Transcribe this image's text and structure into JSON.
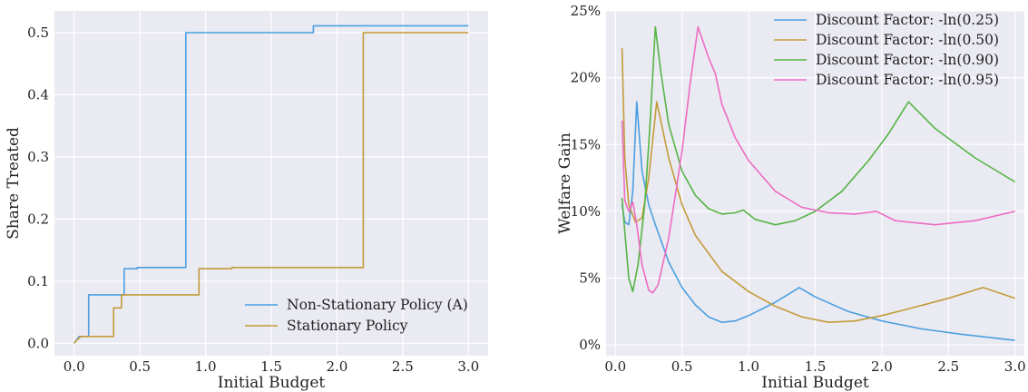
{
  "colors": {
    "plot_bg": "#eaeaf2",
    "grid": "#ffffff",
    "blue": "#4a9fe0",
    "gold": "#c39b3a",
    "green": "#55b545",
    "pink": "#ee6cc2"
  },
  "chart_data": [
    {
      "type": "line",
      "step": true,
      "xlabel": "Initial Budget",
      "ylabel": "Share Treated",
      "xlim": [
        -0.15,
        3.15
      ],
      "ylim": [
        -0.02,
        0.535
      ],
      "xticks": [
        "0.0",
        "0.5",
        "1.0",
        "1.5",
        "2.0",
        "2.5",
        "3.0"
      ],
      "xtick_values": [
        0,
        0.5,
        1.0,
        1.5,
        2.0,
        2.5,
        3.0
      ],
      "yticks": [
        "0.0",
        "0.1",
        "0.2",
        "0.3",
        "0.4",
        "0.5"
      ],
      "ytick_values": [
        0,
        0.1,
        0.2,
        0.3,
        0.4,
        0.5
      ],
      "grid": true,
      "legend_position": "lower-right",
      "series": [
        {
          "name": "Non-Stationary Policy (A)",
          "color_key": "blue",
          "points": [
            [
              0.0,
              0.0
            ],
            [
              0.02,
              0.006
            ],
            [
              0.04,
              0.011
            ],
            [
              0.11,
              0.011
            ],
            [
              0.11,
              0.078
            ],
            [
              0.38,
              0.078
            ],
            [
              0.38,
              0.12
            ],
            [
              0.48,
              0.12
            ],
            [
              0.48,
              0.122
            ],
            [
              0.85,
              0.122
            ],
            [
              0.85,
              0.5
            ],
            [
              1.82,
              0.5
            ],
            [
              1.82,
              0.511
            ],
            [
              3.0,
              0.511
            ]
          ]
        },
        {
          "name": "Stationary Policy",
          "color_key": "gold",
          "points": [
            [
              0.0,
              0.0
            ],
            [
              0.02,
              0.005
            ],
            [
              0.05,
              0.011
            ],
            [
              0.3,
              0.011
            ],
            [
              0.3,
              0.057
            ],
            [
              0.36,
              0.057
            ],
            [
              0.36,
              0.078
            ],
            [
              0.95,
              0.078
            ],
            [
              0.95,
              0.12
            ],
            [
              1.2,
              0.12
            ],
            [
              1.2,
              0.122
            ],
            [
              2.2,
              0.122
            ],
            [
              2.2,
              0.5
            ],
            [
              3.0,
              0.5
            ]
          ]
        }
      ]
    },
    {
      "type": "line",
      "xlabel": "Initial Budget",
      "ylabel": "Welfare Gain",
      "xlim": [
        -0.07,
        3.07
      ],
      "ylim": [
        -0.8,
        25.0
      ],
      "xticks": [
        "0.0",
        "0.5",
        "1.0",
        "1.5",
        "2.0",
        "2.5",
        "3.0"
      ],
      "xtick_values": [
        0,
        0.5,
        1.0,
        1.5,
        2.0,
        2.5,
        3.0
      ],
      "yticks": [
        "0%",
        "5%",
        "10%",
        "15%",
        "20%",
        "25%"
      ],
      "ytick_values": [
        0,
        5,
        10,
        15,
        20,
        25
      ],
      "grid": true,
      "legend_position": "top-right",
      "series": [
        {
          "name": "Discount Factor: -ln(0.25)",
          "color_key": "blue",
          "points": [
            [
              0.05,
              10.5
            ],
            [
              0.07,
              9.2
            ],
            [
              0.1,
              9.0
            ],
            [
              0.13,
              11.5
            ],
            [
              0.16,
              18.2
            ],
            [
              0.2,
              13.0
            ],
            [
              0.25,
              10.5
            ],
            [
              0.3,
              9.0
            ],
            [
              0.4,
              6.2
            ],
            [
              0.5,
              4.3
            ],
            [
              0.6,
              3.0
            ],
            [
              0.7,
              2.1
            ],
            [
              0.8,
              1.7
            ],
            [
              0.9,
              1.8
            ],
            [
              1.0,
              2.2
            ],
            [
              1.2,
              3.2
            ],
            [
              1.38,
              4.3
            ],
            [
              1.5,
              3.6
            ],
            [
              1.75,
              2.5
            ],
            [
              2.0,
              1.8
            ],
            [
              2.3,
              1.2
            ],
            [
              2.6,
              0.8
            ],
            [
              3.0,
              0.35
            ]
          ]
        },
        {
          "name": "Discount Factor: -ln(0.50)",
          "color_key": "gold",
          "points": [
            [
              0.05,
              22.2
            ],
            [
              0.07,
              14.0
            ],
            [
              0.1,
              10.5
            ],
            [
              0.15,
              9.2
            ],
            [
              0.2,
              9.5
            ],
            [
              0.25,
              12.5
            ],
            [
              0.31,
              18.2
            ],
            [
              0.4,
              14.0
            ],
            [
              0.5,
              10.5
            ],
            [
              0.6,
              8.2
            ],
            [
              0.8,
              5.5
            ],
            [
              1.0,
              4.0
            ],
            [
              1.2,
              2.9
            ],
            [
              1.4,
              2.1
            ],
            [
              1.6,
              1.7
            ],
            [
              1.8,
              1.8
            ],
            [
              2.0,
              2.2
            ],
            [
              2.2,
              2.7
            ],
            [
              2.5,
              3.5
            ],
            [
              2.76,
              4.3
            ],
            [
              2.85,
              4.0
            ],
            [
              3.0,
              3.5
            ]
          ]
        },
        {
          "name": "Discount Factor: -ln(0.90)",
          "color_key": "green",
          "points": [
            [
              0.05,
              11.0
            ],
            [
              0.07,
              8.5
            ],
            [
              0.1,
              5.0
            ],
            [
              0.13,
              4.0
            ],
            [
              0.17,
              6.0
            ],
            [
              0.22,
              10.5
            ],
            [
              0.26,
              16.5
            ],
            [
              0.3,
              23.8
            ],
            [
              0.34,
              20.5
            ],
            [
              0.4,
              16.5
            ],
            [
              0.5,
              13.0
            ],
            [
              0.6,
              11.2
            ],
            [
              0.7,
              10.2
            ],
            [
              0.8,
              9.8
            ],
            [
              0.9,
              9.9
            ],
            [
              0.96,
              10.1
            ],
            [
              1.05,
              9.4
            ],
            [
              1.2,
              9.0
            ],
            [
              1.35,
              9.3
            ],
            [
              1.5,
              10.0
            ],
            [
              1.7,
              11.5
            ],
            [
              1.9,
              13.8
            ],
            [
              2.05,
              15.8
            ],
            [
              2.2,
              18.2
            ],
            [
              2.4,
              16.2
            ],
            [
              2.7,
              14.0
            ],
            [
              3.0,
              12.2
            ]
          ]
        },
        {
          "name": "Discount Factor: -ln(0.95)",
          "color_key": "pink",
          "points": [
            [
              0.05,
              16.8
            ],
            [
              0.07,
              10.8
            ],
            [
              0.1,
              10.0
            ],
            [
              0.13,
              10.7
            ],
            [
              0.16,
              9.0
            ],
            [
              0.2,
              6.0
            ],
            [
              0.25,
              4.1
            ],
            [
              0.28,
              3.9
            ],
            [
              0.32,
              4.5
            ],
            [
              0.4,
              8.0
            ],
            [
              0.5,
              14.5
            ],
            [
              0.56,
              19.5
            ],
            [
              0.62,
              23.8
            ],
            [
              0.7,
              21.5
            ],
            [
              0.75,
              20.3
            ],
            [
              0.8,
              18.0
            ],
            [
              0.9,
              15.5
            ],
            [
              1.0,
              13.8
            ],
            [
              1.2,
              11.5
            ],
            [
              1.4,
              10.3
            ],
            [
              1.6,
              9.9
            ],
            [
              1.8,
              9.8
            ],
            [
              1.96,
              10.0
            ],
            [
              2.1,
              9.3
            ],
            [
              2.4,
              9.0
            ],
            [
              2.7,
              9.3
            ],
            [
              3.0,
              10.0
            ]
          ]
        }
      ]
    }
  ]
}
